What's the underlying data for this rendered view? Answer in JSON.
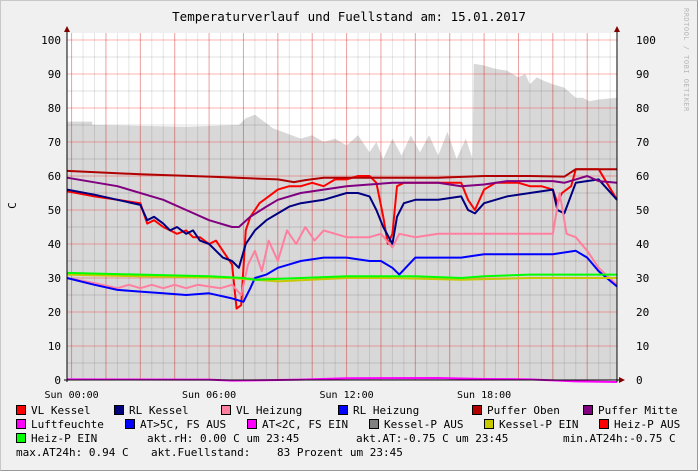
{
  "chart_data": {
    "type": "line",
    "title": "Temperaturverlauf und Fuellstand am: 15.01.2017",
    "ylabel": "C",
    "ylim": [
      0,
      100
    ],
    "y_ticks": [
      "0",
      "10",
      "20",
      "30",
      "40",
      "50",
      "60",
      "70",
      "80",
      "90",
      "100"
    ],
    "x_ticks": [
      {
        "h": 0,
        "label": "Sun 00:00"
      },
      {
        "h": 6,
        "label": "Sun 06:00"
      },
      {
        "h": 12,
        "label": "Sun 12:00"
      },
      {
        "h": 18,
        "label": "Sun 18:00"
      }
    ],
    "xlim_hours": [
      -0.2,
      23.8
    ],
    "watermark": "RRDTOOL / TOBI OETIKER",
    "area": {
      "name": "Fuellstand",
      "color": "#d8d8d8",
      "x": [
        -0.2,
        0.9,
        0.9,
        5,
        7.3,
        7.6,
        8,
        8.4,
        8.8,
        9.2,
        9.6,
        10,
        10.5,
        11,
        11.5,
        12,
        12.5,
        13,
        13.3,
        13.6,
        14,
        14.4,
        14.8,
        15.2,
        15.6,
        16,
        16.4,
        16.8,
        17.2,
        17.5,
        17.55,
        18,
        18.5,
        19,
        19.5,
        19.8,
        20,
        20.3,
        20.6,
        21,
        21.5,
        22,
        22.3,
        22.6,
        23,
        23.8
      ],
      "y": [
        76,
        76,
        75,
        74.5,
        75,
        77,
        78,
        76,
        74,
        73,
        72,
        71,
        72,
        70,
        71,
        69,
        72,
        67,
        70,
        65,
        71,
        66,
        72,
        67,
        72,
        66,
        73,
        65,
        71,
        65,
        93,
        92.5,
        91.5,
        91,
        89,
        90,
        87,
        89,
        88,
        87,
        86,
        83,
        83,
        82,
        82.5,
        83
      ]
    },
    "series": [
      {
        "name": "VL Kessel",
        "color": "#ff0000",
        "width": 2,
        "x": [
          -0.2,
          1,
          2,
          3,
          3.3,
          3.6,
          4,
          4.3,
          4.6,
          5,
          5.3,
          5.6,
          6,
          6.3,
          6.6,
          7,
          7.2,
          7.4,
          7.6,
          7.8,
          8.2,
          8.6,
          9,
          9.5,
          10,
          10.5,
          11,
          11.5,
          12,
          12.5,
          13,
          13.3,
          13.6,
          13.8,
          14,
          14.2,
          14.5,
          15,
          16,
          17,
          17.3,
          17.6,
          18,
          18.5,
          19,
          19.5,
          20,
          20.5,
          21,
          21.2,
          21.4,
          21.8,
          22,
          22.5,
          23,
          23.8
        ],
        "y": [
          55.5,
          54,
          53,
          52,
          46,
          47,
          45,
          44,
          43,
          44,
          42,
          42,
          40,
          41,
          38,
          34,
          21,
          22,
          44,
          48,
          52,
          54,
          56,
          57,
          57,
          58,
          57,
          59,
          59,
          60,
          60,
          58,
          48,
          40,
          43,
          57,
          58,
          58,
          58,
          58,
          53,
          50,
          56,
          58,
          58,
          58,
          57,
          57,
          56,
          52,
          55,
          57,
          62,
          62,
          62,
          53
        ]
      },
      {
        "name": "RL Kessel",
        "color": "#000080",
        "width": 2,
        "x": [
          -0.2,
          1,
          2,
          3,
          3.3,
          3.6,
          4,
          4.3,
          4.6,
          5,
          5.3,
          5.6,
          6,
          6.3,
          6.6,
          7,
          7.3,
          7.6,
          8,
          8.5,
          9,
          9.5,
          10,
          11,
          12,
          12.5,
          13,
          13.3,
          13.6,
          14,
          14.2,
          14.5,
          15,
          16,
          17,
          17.3,
          17.6,
          18,
          19,
          20,
          21,
          21.2,
          21.5,
          22,
          23,
          23.8
        ],
        "y": [
          56,
          54.5,
          53,
          51.5,
          47,
          48,
          46,
          44,
          45,
          43,
          44,
          41,
          40,
          38,
          36,
          35,
          33,
          40,
          44,
          47,
          49,
          51,
          52,
          53,
          55,
          55,
          54,
          50,
          45,
          40,
          48,
          52,
          53,
          53,
          54,
          50,
          49,
          52,
          54,
          55,
          56,
          50,
          49,
          58,
          59,
          53
        ]
      },
      {
        "name": "VL Heizung",
        "color": "#ff7f9f",
        "width": 2,
        "x": [
          -0.2,
          1,
          2,
          2.5,
          3,
          3.5,
          4,
          4.5,
          5,
          5.5,
          6,
          6.5,
          7,
          7.4,
          7.7,
          8,
          8.3,
          8.6,
          9,
          9.4,
          9.8,
          10.2,
          10.6,
          11,
          12,
          13,
          13.5,
          14,
          14.3,
          15,
          16,
          17,
          18,
          19,
          20,
          21,
          21.3,
          21.6,
          22,
          22.5,
          23,
          23.8
        ],
        "y": [
          30,
          28.5,
          27,
          28,
          27,
          28,
          27,
          28,
          27,
          28,
          27.5,
          27,
          28,
          25,
          34,
          38,
          32,
          41,
          35,
          44,
          40,
          45,
          41,
          44,
          42,
          42,
          43,
          39,
          43,
          42,
          43,
          43,
          43,
          43,
          43,
          43,
          55,
          43,
          42,
          38,
          33,
          28
        ]
      },
      {
        "name": "RL Heizung",
        "color": "#0000ff",
        "width": 2,
        "x": [
          -0.2,
          1,
          2,
          3,
          4,
          5,
          6,
          7,
          7.5,
          7.8,
          8,
          8.5,
          9,
          9.5,
          10,
          11,
          12,
          13,
          13.5,
          14,
          14.3,
          15,
          16,
          17,
          18,
          19,
          20,
          21,
          22,
          22.5,
          23,
          23.8
        ],
        "y": [
          30,
          28,
          26.5,
          26,
          25.5,
          25,
          25.5,
          24,
          23,
          27,
          30,
          31,
          33,
          34,
          35,
          36,
          36,
          35,
          35,
          33,
          31,
          36,
          36,
          36,
          37,
          37,
          37,
          37,
          38,
          36,
          32,
          27.5
        ]
      },
      {
        "name": "Puffer Oben",
        "color": "#b00000",
        "width": 2,
        "x": [
          -0.2,
          3,
          6,
          9,
          9.7,
          10.2,
          11,
          13,
          16,
          18,
          20,
          21.5,
          22,
          23.8
        ],
        "y": [
          61.5,
          60.5,
          59.8,
          59,
          58.2,
          58.8,
          59.5,
          59.5,
          59.5,
          60,
          60,
          59.8,
          62,
          62
        ]
      },
      {
        "name": "Puffer Mitte",
        "color": "#800080",
        "width": 2,
        "x": [
          -0.2,
          2,
          4,
          5,
          6,
          7,
          7.3,
          7.8,
          8.5,
          9,
          10,
          11,
          12,
          13,
          14,
          15,
          16,
          17,
          18,
          19,
          20,
          21,
          21.5,
          22,
          22.5,
          23,
          23.8
        ],
        "y": [
          59.5,
          57,
          53,
          50,
          47,
          45,
          45,
          48,
          51,
          53,
          55,
          56,
          57,
          57.5,
          58,
          58,
          58,
          57,
          57.5,
          58.5,
          58.5,
          58.5,
          58,
          59,
          60,
          58.5,
          58
        ]
      },
      {
        "name": "Luftfeuchte",
        "color": "#ff00ff",
        "width": 2,
        "x": [
          -0.2,
          6,
          7,
          10,
          12,
          16,
          18,
          20,
          22,
          23.8
        ],
        "y": [
          0.2,
          0.1,
          -0.2,
          0.1,
          0.5,
          0.6,
          0.3,
          0.2,
          -0.4,
          -0.6
        ]
      },
      {
        "name": "Kessel-P EIN",
        "color": "#c8c800",
        "width": 2,
        "x": [
          -0.2,
          3,
          7,
          8,
          9,
          12,
          14,
          17,
          20,
          23.8
        ],
        "y": [
          31,
          30.5,
          30,
          29.5,
          29,
          30,
          30,
          29.5,
          30,
          30
        ]
      },
      {
        "name": "Heiz-P EIN",
        "color": "#00ff00",
        "width": 2,
        "x": [
          -0.2,
          3,
          6,
          7.5,
          8,
          10,
          12,
          15,
          17,
          18,
          20,
          23.8
        ],
        "y": [
          31.5,
          31,
          30.5,
          30,
          29.5,
          30,
          30.5,
          30.5,
          30,
          30.5,
          31,
          31
        ]
      }
    ],
    "legend": {
      "placement": "bottom",
      "entries": [
        {
          "label": "VL Kessel",
          "color": "#ff0000"
        },
        {
          "label": "RL Kessel",
          "color": "#000080"
        },
        {
          "label": "VL Heizung",
          "color": "#ff7f9f"
        },
        {
          "label": "RL Heizung",
          "color": "#0000ff"
        },
        {
          "label": "Puffer Oben",
          "color": "#b00000"
        },
        {
          "label": "Puffer Mitte",
          "color": "#800080"
        },
        {
          "label": "Luftfeuchte",
          "color": "#ff00ff"
        },
        {
          "label": "AT>5C, FS AUS",
          "color": "#0000ff"
        },
        {
          "label": "AT<2C, FS EIN",
          "color": "#ff00ff"
        },
        {
          "label": "Kessel-P AUS",
          "color": "#808080"
        },
        {
          "label": "Kessel-P EIN",
          "color": "#c8c800"
        },
        {
          "label": "Heiz-P AUS",
          "color": "#ff0000"
        },
        {
          "label": "Heiz-P EIN",
          "color": "#00ff00"
        }
      ],
      "stats": {
        "akt_rh": "akt.rH: 0.00 C um 23:45",
        "akt_at": "akt.AT:-0.75 C um 23:45",
        "min_at": "min.AT24h:-0.75 C",
        "max_at": "max.AT24h: 0.94 C",
        "fuell_label": "akt.Fuellstand:",
        "fuell_value": "83 Prozent um 23:45"
      }
    }
  }
}
